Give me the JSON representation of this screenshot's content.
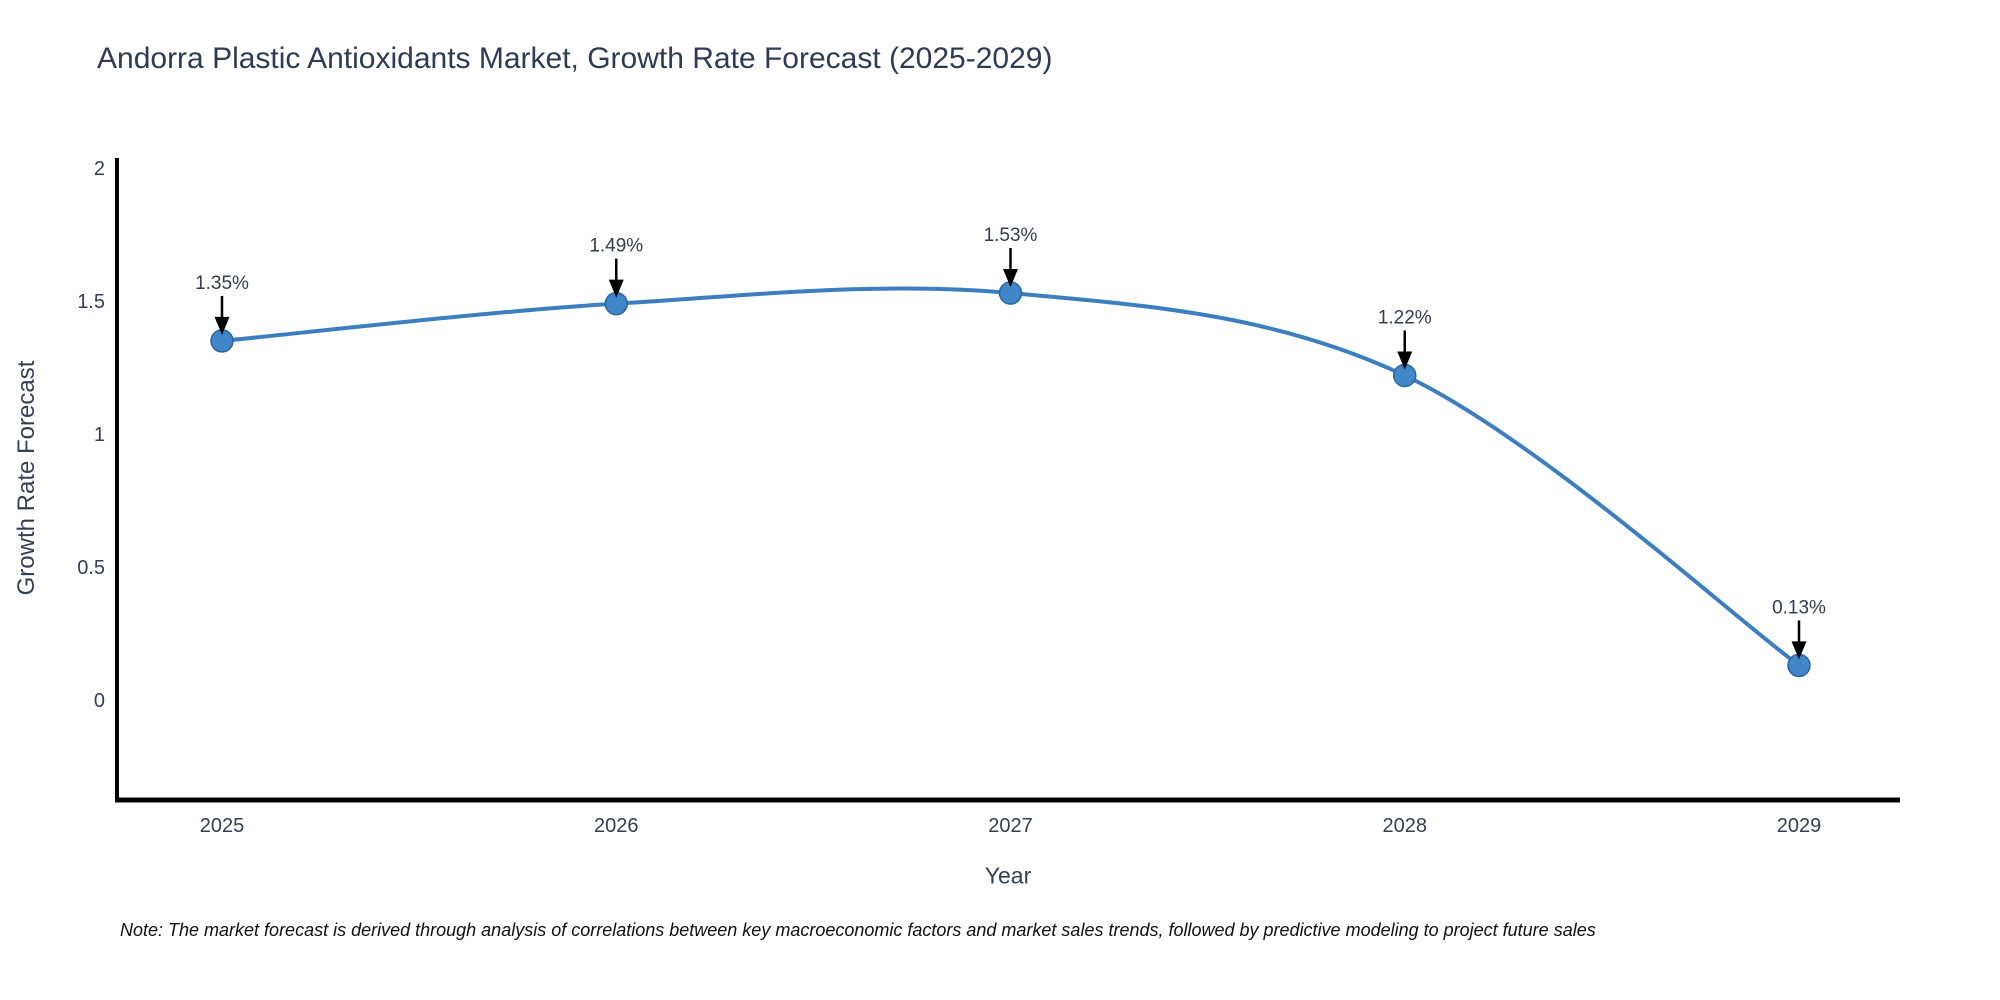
{
  "title": "Andorra Plastic Antioxidants Market, Growth Rate Forecast (2025-2029)",
  "note": "Note: The market forecast is derived through analysis of correlations between key macroeconomic factors and market sales trends, followed by predictive modeling to project future sales",
  "chart_data": {
    "type": "line",
    "title": "Andorra Plastic Antioxidants Market, Growth Rate Forecast (2025-2029)",
    "x": [
      2025,
      2026,
      2027,
      2028,
      2029
    ],
    "xtick_labels": [
      "2025",
      "2026",
      "2027",
      "2028",
      "2029"
    ],
    "series": [
      {
        "name": "Growth Rate Forecast",
        "values": [
          1.35,
          1.49,
          1.53,
          1.22,
          0.13
        ],
        "point_labels": [
          "1.35%",
          "1.49%",
          "1.53%",
          "1.22%",
          "0.13%"
        ]
      }
    ],
    "xlabel": "Year",
    "ylabel": "Growth Rate Forecast",
    "yticks": [
      0,
      0.5,
      1,
      1.5,
      2
    ],
    "ytick_labels": [
      "0",
      "0.5",
      "1",
      "1.5",
      "2"
    ],
    "ylim": [
      -0.39,
      2.04
    ],
    "grid": false,
    "legend_position": "none",
    "line_shape": "spline",
    "annotations_have_arrows": true,
    "colors": {
      "line": "#3c7ebf",
      "marker_fill": "#3f87c9",
      "marker_edge": "#2b66a0",
      "axis": "#000000",
      "tick_text": "#333f54",
      "annotation_text": "#323c4e",
      "annotation_arrow": "#000000",
      "title_text": "#2e3a56",
      "note_text": "#111111"
    }
  }
}
